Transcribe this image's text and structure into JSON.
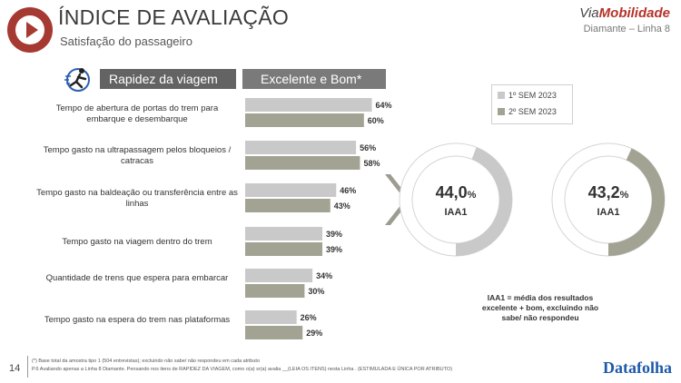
{
  "header": {
    "title": "ÍNDICE DE AVALIAÇÃO",
    "subtitle": "Satisfação do passageiro",
    "brand_via": "Via",
    "brand_mob": "Mobilidade",
    "line_info": "Diamante – Linha 8"
  },
  "section": {
    "title": "Rapidez da viagem",
    "chart_header": "Excelente e Bom*",
    "icon": "runner-icon"
  },
  "legend": {
    "s1": "1º SEM 2023",
    "s2": "2º SEM 2023"
  },
  "colors": {
    "s1": "#c9c9c9",
    "s2": "#a3a394",
    "accent": "#a63a32",
    "arrow": "#9c9c90"
  },
  "chart_data": {
    "type": "bar",
    "categories": [
      "Tempo de abertura de portas do trem para embarque e desembarque",
      "Tempo gasto na ultrapassagem pelos bloqueios / catracas",
      "Tempo gasto na baldeação ou transferência entre as linhas",
      "Tempo gasto na viagem dentro do trem",
      "Quantidade de trens que espera para embarcar",
      "Tempo gasto na espera do trem nas plataformas"
    ],
    "series": [
      {
        "name": "1º SEM 2023",
        "values": [
          64,
          56,
          46,
          39,
          34,
          26
        ],
        "labels": [
          "64%",
          "56%",
          "46%",
          "39%",
          "34%",
          "26%"
        ]
      },
      {
        "name": "2º SEM 2023",
        "values": [
          60,
          58,
          43,
          39,
          30,
          29
        ],
        "labels": [
          "60%",
          "58%",
          "43%",
          "39%",
          "30%",
          "29%"
        ]
      }
    ],
    "xlim": [
      0,
      100
    ]
  },
  "donuts": [
    {
      "value": 44.0,
      "number": "44,0",
      "pct": "%",
      "label": "IAA1"
    },
    {
      "value": 43.2,
      "number": "43,2",
      "pct": "%",
      "label": "IAA1"
    }
  ],
  "iaa_note": "IAA1 = média dos resultados excelente + bom, excluindo não sabe/ não respondeu",
  "footer": {
    "page": "14",
    "note1": "(*) Base total da amostra tipo 1 (504 entrevistas); excluindo não sabe/ não respondeu em cada atributo",
    "note2": "P.6 Avaliando apenas a Linha 8 Diamante. Pensando nos itens de RAPIDEZ DA VIAGEM, como o(a) sr(a) avalia __(LEIA OS ITENS) nesta Linha . (ESTIMULADA E ÚNICA POR ATRIBUTO)",
    "logo": "Datafolha"
  }
}
